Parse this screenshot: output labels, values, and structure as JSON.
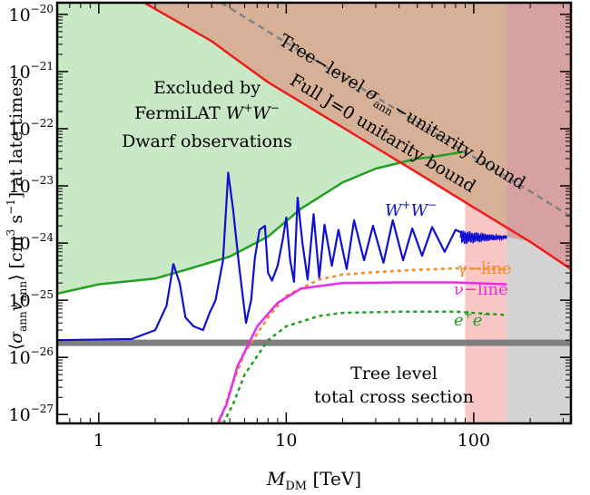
{
  "chart_data": {
    "type": "line",
    "x_scale": "log",
    "y_scale": "log",
    "xlim": [
      0.6,
      330
    ],
    "ylim": [
      7e-28,
      1.6e-20
    ],
    "xlabel": "M_DM [TeV]",
    "ylabel": "⟨σ_ann v_ann⟩ [cm³ s⁻¹] at late times",
    "x_ticks": [
      {
        "value": 1,
        "label": "1"
      },
      {
        "value": 10,
        "label": "10"
      },
      {
        "value": 100,
        "label": "100"
      }
    ],
    "y_ticks": [
      {
        "exp": -20,
        "base": "10",
        "sup": "−20"
      },
      {
        "exp": -21,
        "base": "10",
        "sup": "−21"
      },
      {
        "exp": -22,
        "base": "10",
        "sup": "−22"
      },
      {
        "exp": -23,
        "base": "10",
        "sup": "−23"
      },
      {
        "exp": -24,
        "base": "10",
        "sup": "−24"
      },
      {
        "exp": -25,
        "base": "10",
        "sup": "−25"
      },
      {
        "exp": -26,
        "base": "10",
        "sup": "−26"
      },
      {
        "exp": -27,
        "base": "10",
        "sup": "−27"
      }
    ],
    "regions": [
      {
        "name": "Excluded by FermiLAT W+W− Dwarf observations",
        "color": "#c9e9c6"
      },
      {
        "name": "unitarity excluded (overlap)",
        "color": "#d6b197"
      },
      {
        "name": "pink band",
        "x": [
          90,
          150
        ],
        "color": "#f9c7c5"
      },
      {
        "name": "rose band",
        "x": [
          150,
          330
        ],
        "color": "#d8a1a1"
      },
      {
        "name": "gray band",
        "x": [
          150,
          330
        ],
        "color": "#d3d3d3"
      }
    ],
    "series": [
      {
        "name": "FermiLAT W+W−",
        "color": "#22a022",
        "style": "solid",
        "points": [
          [
            0.6,
            1.3e-25
          ],
          [
            1,
            1.9e-25
          ],
          [
            2,
            2.4e-25
          ],
          [
            3,
            3.5e-25
          ],
          [
            5,
            5.8e-25
          ],
          [
            8,
            1.3e-24
          ],
          [
            12,
            4e-24
          ],
          [
            20,
            1.15e-23
          ],
          [
            30,
            2e-23
          ],
          [
            50,
            3e-23
          ],
          [
            60,
            3.2e-23
          ],
          [
            90,
            4e-23
          ]
        ]
      },
      {
        "name": "Full J=0 unitarity bound",
        "color": "#ee1c1c",
        "style": "solid",
        "points": [
          [
            1.75,
            1.6e-20
          ],
          [
            4.0,
            3.4e-21
          ],
          [
            5.2,
            1.8e-21
          ],
          [
            8,
            6.5e-22
          ],
          [
            20,
            1.05e-22
          ],
          [
            50,
            1.7e-23
          ],
          [
            100,
            4.2e-24
          ],
          [
            200,
            1.05e-24
          ],
          [
            330,
            3.5e-25
          ]
        ]
      },
      {
        "name": "Tree-level σ_ann-unitarity bound",
        "color": "#808080",
        "style": "dashed",
        "points": [
          [
            4.5,
            1.6e-20
          ],
          [
            10,
            3.2e-21
          ],
          [
            30,
            3.6e-22
          ],
          [
            100,
            3.2e-23
          ],
          [
            200,
            8e-24
          ],
          [
            330,
            2.9e-24
          ]
        ]
      },
      {
        "name": "W+W−",
        "color": "#1010d0",
        "style": "solid",
        "points": [
          [
            0.6,
            2e-26
          ],
          [
            1.5,
            2.1e-26
          ],
          [
            2,
            3e-26
          ],
          [
            2.3,
            8e-26
          ],
          [
            2.5,
            4.3e-25
          ],
          [
            2.7,
            2e-25
          ],
          [
            2.9,
            5e-26
          ],
          [
            3.2,
            3.5e-26
          ],
          [
            3.6,
            3e-26
          ],
          [
            3.9,
            6e-26
          ],
          [
            4.2,
            1e-25
          ],
          [
            4.6,
            5e-25
          ],
          [
            4.9,
            1.7e-23
          ],
          [
            5.2,
            4e-24
          ],
          [
            5.6,
            4e-25
          ],
          [
            6.1,
            4e-26
          ],
          [
            6.5,
            1e-25
          ],
          [
            6.8,
            5.5e-25
          ],
          [
            7.2,
            1.7e-24
          ],
          [
            7.7,
            2e-24
          ],
          [
            8.0,
            3e-25
          ],
          [
            8.4,
            2.2e-25
          ],
          [
            9.0,
            4e-25
          ],
          [
            9.6,
            1.2e-24
          ],
          [
            10.0,
            2.8e-24
          ],
          [
            10.5,
            5e-25
          ],
          [
            11.0,
            2.1e-25
          ],
          [
            11.5,
            6.2e-24
          ],
          [
            12.2,
            1e-24
          ],
          [
            13,
            2.3e-25
          ],
          [
            14,
            3.2e-24
          ],
          [
            15,
            2.5e-25
          ],
          [
            16,
            2.1e-24
          ],
          [
            17.5,
            4e-25
          ],
          [
            19,
            1.7e-24
          ],
          [
            21,
            3.5e-25
          ],
          [
            23,
            2.5e-24
          ],
          [
            26,
            5e-25
          ],
          [
            29,
            2e-24
          ],
          [
            33,
            4.5e-25
          ],
          [
            37,
            2.5e-24
          ],
          [
            42,
            5e-25
          ],
          [
            47,
            1.8e-24
          ],
          [
            53,
            6e-25
          ],
          [
            60,
            1.9e-24
          ],
          [
            70,
            7e-25
          ],
          [
            80,
            1.7e-24
          ],
          [
            100,
            1.2e-24
          ],
          [
            150,
            1.3e-24
          ]
        ]
      },
      {
        "name": "γ−line",
        "color": "#f28c28",
        "style": "dotted",
        "points": [
          [
            4.4,
            7e-28
          ],
          [
            5,
            2.5e-27
          ],
          [
            6,
            1.2e-26
          ],
          [
            8,
            5e-26
          ],
          [
            10,
            1.2e-25
          ],
          [
            15,
            2.3e-25
          ],
          [
            20,
            2.8e-25
          ],
          [
            30,
            3.1e-25
          ],
          [
            50,
            3.4e-25
          ],
          [
            80,
            3.6e-25
          ],
          [
            150,
            3.5e-25
          ]
        ]
      },
      {
        "name": "ν−line",
        "color": "#e82ce8",
        "style": "solid",
        "points": [
          [
            4.3,
            7e-28
          ],
          [
            4.8,
            1.5e-27
          ],
          [
            5.5,
            7e-27
          ],
          [
            7,
            3.5e-26
          ],
          [
            9,
            9e-26
          ],
          [
            12,
            1.6e-25
          ],
          [
            20,
            2e-25
          ],
          [
            40,
            2.05e-25
          ],
          [
            80,
            2.05e-25
          ],
          [
            150,
            1.9e-25
          ]
        ]
      },
      {
        "name": "e⁺e⁻",
        "color": "#1f9f1f",
        "style": "dotted",
        "points": [
          [
            4.6,
            7e-28
          ],
          [
            5.2,
            1.5e-27
          ],
          [
            6,
            5e-27
          ],
          [
            8,
            2e-26
          ],
          [
            10,
            3.5e-26
          ],
          [
            15,
            5.3e-26
          ],
          [
            20,
            6e-26
          ],
          [
            40,
            6.3e-26
          ],
          [
            80,
            6.3e-26
          ],
          [
            150,
            5.5e-26
          ]
        ]
      },
      {
        "name": "Tree level total cross section",
        "color": "#7f7f7f",
        "style": "solid",
        "points": [
          [
            0.6,
            1.8e-26
          ],
          [
            330,
            1.8e-26
          ]
        ]
      }
    ],
    "annotations": {
      "fermi": [
        "Excluded by",
        "FermiLAT W⁺W⁻",
        "Dwarf observations"
      ],
      "tree_level_bound": "Tree−level σ_ann−unitarity bound",
      "full_j0_bound": "Full J=0 unitarity bound",
      "ww": "W⁺W⁻",
      "gamma_line": "γ−line",
      "nu_line": "ν−line",
      "ee": "e⁺e⁻",
      "tree_total": [
        "Tree level",
        "total cross section"
      ]
    }
  }
}
